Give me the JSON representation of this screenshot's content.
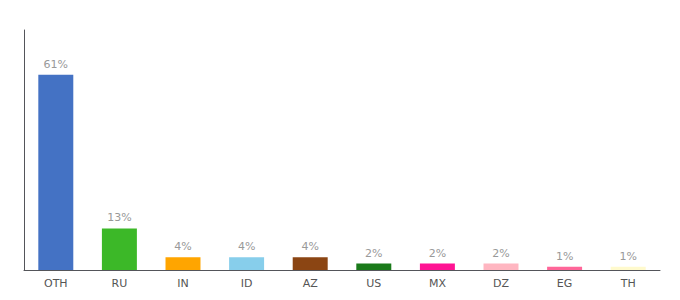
{
  "chart_data": {
    "type": "bar",
    "categories": [
      "OTH",
      "RU",
      "IN",
      "ID",
      "AZ",
      "US",
      "MX",
      "DZ",
      "EG",
      "TH"
    ],
    "values": [
      61,
      13,
      4,
      4,
      4,
      2,
      2,
      2,
      1,
      1
    ],
    "value_labels": [
      "61%",
      "13%",
      "4%",
      "4%",
      "4%",
      "2%",
      "2%",
      "2%",
      "1%",
      "1%"
    ],
    "data_labels": true,
    "colors": [
      "#4472C4",
      "#3CB828",
      "#FFA500",
      "#87CEEB",
      "#8B4513",
      "#1A7A1A",
      "#FF1493",
      "#FFB6C1",
      "#FF6699",
      "#FFFACD"
    ],
    "ylim": [
      0,
      75
    ],
    "tick_labels": "x",
    "grid": false
  }
}
